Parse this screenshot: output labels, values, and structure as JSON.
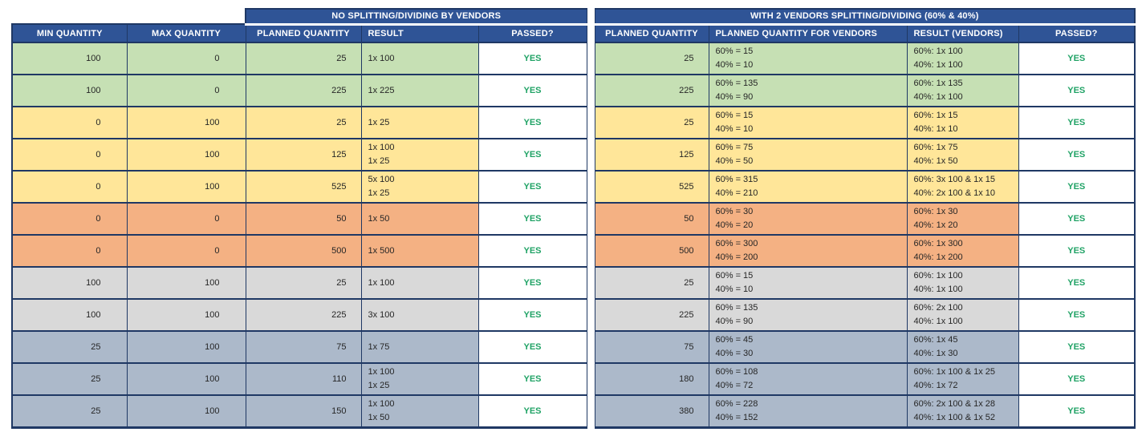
{
  "colors": {
    "header_bg": "#2F5496",
    "header_text": "#FFFFFF",
    "border": "#1F3864",
    "row_green": "#C6E0B4",
    "row_yellow": "#FFE699",
    "row_orange": "#F4B183",
    "row_gray": "#D9D9D9",
    "row_bluegray": "#ACB9CA",
    "passed_text": "#21A366",
    "cell_text": "#262626"
  },
  "table": {
    "group_headers": [
      {
        "label": "",
        "span": 2
      },
      {
        "label": "NO SPLITTING/DIVIDING BY VENDORS",
        "span": 3
      },
      {
        "label": "WITH 2 VENDORS SPLITTING/DIVIDING (60% & 40%)",
        "span": 4
      }
    ],
    "columns": [
      "MIN QUANTITY",
      "MAX QUANTITY",
      "PLANNED QUANTITY",
      "RESULT",
      "PASSED?",
      "PLANNED QUANTITY",
      "PLANNED QUANTITY FOR VENDORS",
      "RESULT (VENDORS)",
      "PASSED?"
    ],
    "rows": [
      {
        "color": "green",
        "min_quantity": "100",
        "max_quantity": "0",
        "planned_quantity": "25",
        "result": [
          "1x 100"
        ],
        "passed": "YES",
        "planned_quantity_vendors": "25",
        "planned_quantity_for_vendors": [
          "60% = 15",
          "40% = 10"
        ],
        "result_vendors": [
          "60%: 1x 100",
          "40%: 1x 100"
        ],
        "passed_vendors": "YES"
      },
      {
        "color": "green",
        "min_quantity": "100",
        "max_quantity": "0",
        "planned_quantity": "225",
        "result": [
          "1x 225"
        ],
        "passed": "YES",
        "planned_quantity_vendors": "225",
        "planned_quantity_for_vendors": [
          "60% = 135",
          "40% = 90"
        ],
        "result_vendors": [
          "60%: 1x 135",
          "40%: 1x 100"
        ],
        "passed_vendors": "YES"
      },
      {
        "color": "yellow",
        "min_quantity": "0",
        "max_quantity": "100",
        "planned_quantity": "25",
        "result": [
          "1x 25"
        ],
        "passed": "YES",
        "planned_quantity_vendors": "25",
        "planned_quantity_for_vendors": [
          "60% = 15",
          "40% = 10"
        ],
        "result_vendors": [
          "60%: 1x 15",
          "40%: 1x 10"
        ],
        "passed_vendors": "YES"
      },
      {
        "color": "yellow",
        "min_quantity": "0",
        "max_quantity": "100",
        "planned_quantity": "125",
        "result": [
          "1x 100",
          "1x 25"
        ],
        "passed": "YES",
        "planned_quantity_vendors": "125",
        "planned_quantity_for_vendors": [
          "60% = 75",
          "40% = 50"
        ],
        "result_vendors": [
          "60%: 1x 75",
          "40%: 1x 50"
        ],
        "passed_vendors": "YES"
      },
      {
        "color": "yellow",
        "min_quantity": "0",
        "max_quantity": "100",
        "planned_quantity": "525",
        "result": [
          "5x 100",
          "1x 25"
        ],
        "passed": "YES",
        "planned_quantity_vendors": "525",
        "planned_quantity_for_vendors": [
          "60% = 315",
          "40% = 210"
        ],
        "result_vendors": [
          "60%: 3x 100 & 1x 15",
          "40%: 2x 100 & 1x 10"
        ],
        "passed_vendors": "YES"
      },
      {
        "color": "orange",
        "min_quantity": "0",
        "max_quantity": "0",
        "planned_quantity": "50",
        "result": [
          "1x 50"
        ],
        "passed": "YES",
        "planned_quantity_vendors": "50",
        "planned_quantity_for_vendors": [
          "60% = 30",
          "40% = 20"
        ],
        "result_vendors": [
          "60%: 1x 30",
          "40%: 1x 20"
        ],
        "passed_vendors": "YES"
      },
      {
        "color": "orange",
        "min_quantity": "0",
        "max_quantity": "0",
        "planned_quantity": "500",
        "result": [
          "1x 500"
        ],
        "passed": "YES",
        "planned_quantity_vendors": "500",
        "planned_quantity_for_vendors": [
          "60% = 300",
          "40% = 200"
        ],
        "result_vendors": [
          "60%: 1x 300",
          "40%: 1x 200"
        ],
        "passed_vendors": "YES"
      },
      {
        "color": "gray",
        "min_quantity": "100",
        "max_quantity": "100",
        "planned_quantity": "25",
        "result": [
          "1x 100"
        ],
        "passed": "YES",
        "planned_quantity_vendors": "25",
        "planned_quantity_for_vendors": [
          "60% = 15",
          "40% = 10"
        ],
        "result_vendors": [
          "60%: 1x 100",
          "40%: 1x 100"
        ],
        "passed_vendors": "YES"
      },
      {
        "color": "gray",
        "min_quantity": "100",
        "max_quantity": "100",
        "planned_quantity": "225",
        "result": [
          "3x 100"
        ],
        "passed": "YES",
        "planned_quantity_vendors": "225",
        "planned_quantity_for_vendors": [
          "60% = 135",
          "40% = 90"
        ],
        "result_vendors": [
          "60%: 2x 100",
          "40%: 1x 100"
        ],
        "passed_vendors": "YES"
      },
      {
        "color": "bluegray",
        "min_quantity": "25",
        "max_quantity": "100",
        "planned_quantity": "75",
        "result": [
          "1x 75"
        ],
        "passed": "YES",
        "planned_quantity_vendors": "75",
        "planned_quantity_for_vendors": [
          "60% = 45",
          "40% = 30"
        ],
        "result_vendors": [
          "60%: 1x 45",
          "40%: 1x 30"
        ],
        "passed_vendors": "YES"
      },
      {
        "color": "bluegray",
        "min_quantity": "25",
        "max_quantity": "100",
        "planned_quantity": "110",
        "result": [
          "1x 100",
          "1x 25"
        ],
        "passed": "YES",
        "planned_quantity_vendors": "180",
        "planned_quantity_for_vendors": [
          "60% = 108",
          "40% = 72"
        ],
        "result_vendors": [
          "60%: 1x 100 & 1x 25",
          "40%: 1x 72"
        ],
        "passed_vendors": "YES"
      },
      {
        "color": "bluegray",
        "min_quantity": "25",
        "max_quantity": "100",
        "planned_quantity": "150",
        "result": [
          "1x 100",
          "1x 50"
        ],
        "passed": "YES",
        "planned_quantity_vendors": "380",
        "planned_quantity_for_vendors": [
          "60% = 228",
          "40% = 152"
        ],
        "result_vendors": [
          "60%: 2x 100 & 1x 28",
          "40%: 1x 100 & 1x 52"
        ],
        "passed_vendors": "YES"
      }
    ]
  }
}
